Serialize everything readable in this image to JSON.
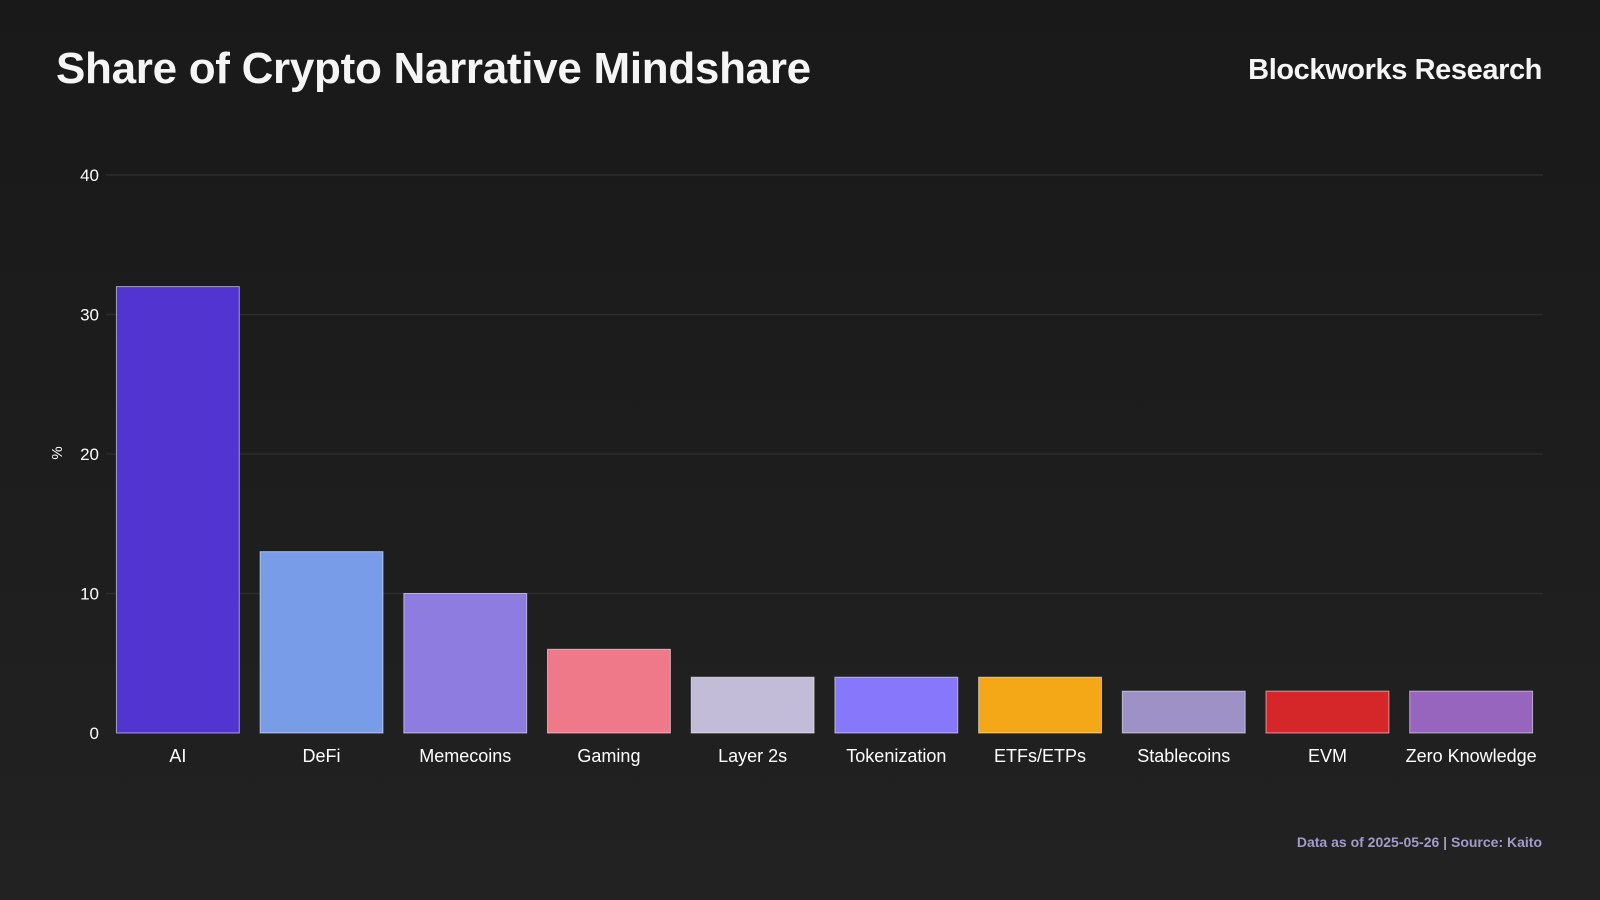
{
  "header": {
    "title": "Share of Crypto Narrative Mindshare",
    "brand": "Blockworks Research"
  },
  "footer": {
    "source": "Data as of 2025-05-26 | Source: Kaito"
  },
  "chart_data": {
    "type": "bar",
    "title": "Share of Crypto Narrative Mindshare",
    "xlabel": "",
    "ylabel": "%",
    "ylim": [
      0,
      40
    ],
    "yticks": [
      0,
      10,
      20,
      30,
      40
    ],
    "grid": true,
    "legend": "none",
    "categories": [
      "AI",
      "DeFi",
      "Memecoins",
      "Gaming",
      "Layer 2s",
      "Tokenization",
      "ETFs/ETPs",
      "Stablecoins",
      "EVM",
      "Zero Knowledge"
    ],
    "values": [
      32,
      13,
      10,
      6,
      4,
      4,
      4,
      3,
      3,
      3
    ],
    "colors": [
      "#5235d0",
      "#789ce8",
      "#8f7ce0",
      "#ef7889",
      "#c3bcd8",
      "#8777fb",
      "#f5a817",
      "#9d91c6",
      "#d52629",
      "#9765be"
    ]
  }
}
